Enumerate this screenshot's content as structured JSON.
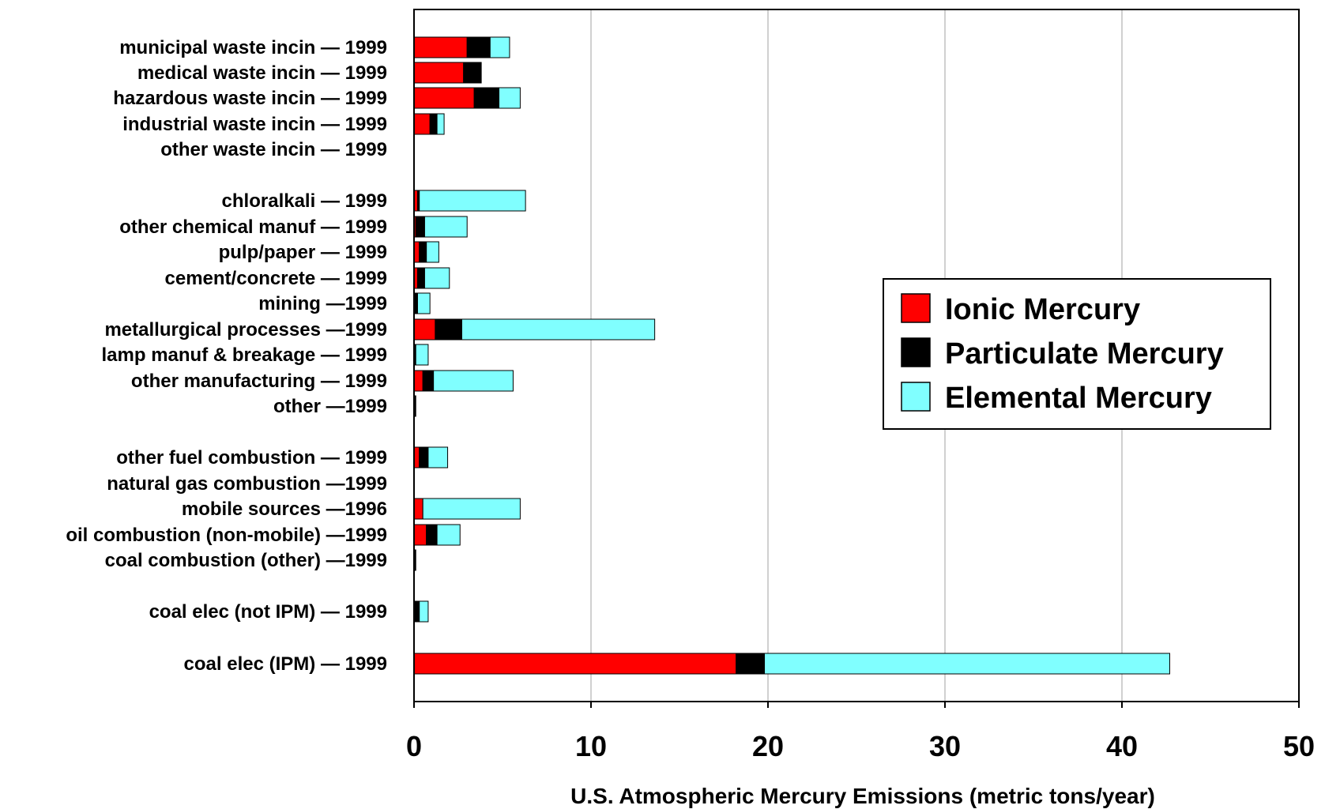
{
  "chart_data": {
    "type": "bar",
    "orientation": "horizontal",
    "stacked": true,
    "xlabel": "U.S. Atmospheric Mercury Emissions (metric tons/year)",
    "ylabel": "",
    "xlim": [
      0,
      50
    ],
    "x_ticks": [
      "0",
      "10",
      "20",
      "30",
      "40",
      "50"
    ],
    "grid": "vertical",
    "legend_position": "right",
    "categories": [
      "municipal waste incin — 1999",
      "medical waste incin — 1999",
      "hazardous waste incin — 1999",
      "industrial waste incin — 1999",
      "other waste incin — 1999",
      "chloralkali — 1999",
      "other chemical manuf — 1999",
      "pulp/paper — 1999",
      "cement/concrete — 1999",
      "mining —1999",
      "metallurgical processes —1999",
      "lamp manuf & breakage — 1999",
      "other manufacturing — 1999",
      "other —1999",
      "other fuel combustion — 1999",
      "natural gas combustion —1999",
      "mobile sources —1996",
      "oil combustion (non-mobile) —1999",
      "coal combustion (other) —1999",
      "coal elec (not IPM) — 1999",
      "coal elec (IPM) — 1999"
    ],
    "series": [
      {
        "name": "Ionic Mercury",
        "color": "#ff0000",
        "values": [
          3.0,
          2.8,
          3.4,
          0.9,
          0,
          0.2,
          0.1,
          0.3,
          0.2,
          0,
          1.2,
          0,
          0.5,
          0,
          0.3,
          0,
          0.5,
          0.7,
          0,
          0,
          18.2
        ]
      },
      {
        "name": "Particulate Mercury",
        "color": "#000000",
        "values": [
          1.3,
          1.0,
          1.4,
          0.4,
          0,
          0.1,
          0.5,
          0.4,
          0.4,
          0.2,
          1.5,
          0.1,
          0.6,
          0.1,
          0.5,
          0,
          0,
          0.6,
          0.1,
          0.3,
          1.6
        ]
      },
      {
        "name": "Elemental Mercury",
        "color": "#80ffff",
        "values": [
          1.1,
          0,
          1.2,
          0.4,
          0,
          6.0,
          2.4,
          0.7,
          1.4,
          0.7,
          10.9,
          0.7,
          4.5,
          0,
          1.1,
          0,
          5.5,
          1.3,
          0,
          0.5,
          22.9
        ]
      }
    ]
  }
}
